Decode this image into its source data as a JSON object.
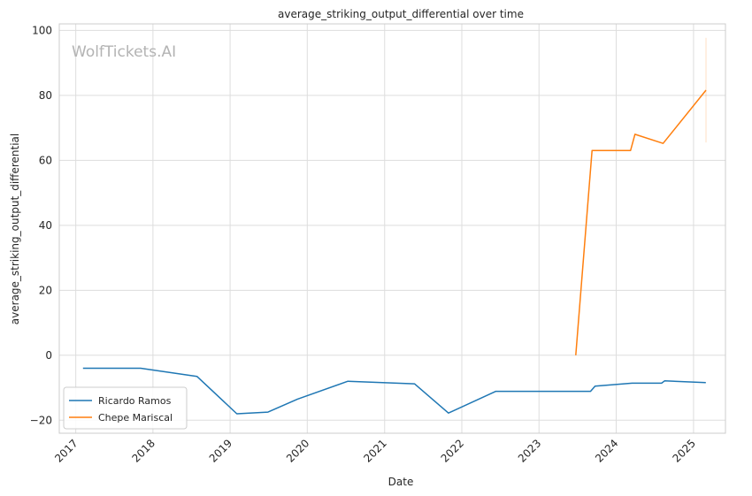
{
  "chart_data": {
    "type": "line",
    "title": "average_striking_output_differential over time",
    "xlabel": "Date",
    "ylabel": "average_striking_output_differential",
    "watermark": "WolfTickets.AI",
    "xlim": [
      "2016-10-15",
      "2025-06-01"
    ],
    "ylim": [
      -24,
      102
    ],
    "x_ticks": [
      "2017",
      "2018",
      "2019",
      "2020",
      "2021",
      "2022",
      "2023",
      "2024",
      "2025"
    ],
    "y_ticks": [
      -20,
      0,
      20,
      40,
      60,
      80,
      100
    ],
    "grid": true,
    "legend_position": "lower-left",
    "series": [
      {
        "name": "Ricardo Ramos",
        "color": "#1f77b4",
        "x": [
          "2017-02-04",
          "2017-11-04",
          "2018-07-28",
          "2019-02-02",
          "2019-06-29",
          "2019-11-16",
          "2020-07-11",
          "2021-05-22",
          "2021-10-30",
          "2022-06-11",
          "2023-09-02",
          "2023-09-23",
          "2024-03-16",
          "2024-08-03",
          "2024-08-17",
          "2025-02-28"
        ],
        "values": [
          -4,
          -4,
          -6.5,
          -18,
          -17.5,
          -13.5,
          -8,
          -8.8,
          -17.8,
          -11.1,
          -11.1,
          -9.5,
          -8.6,
          -8.6,
          -7.9,
          -8.4
        ]
      },
      {
        "name": "Chepe Mariscal",
        "color": "#ff7f0e",
        "x": [
          "2023-06-24",
          "2023-09-09",
          "2024-03-09",
          "2024-03-30",
          "2024-08-10",
          "2025-03-01"
        ],
        "values": [
          0,
          63,
          63,
          68,
          65.2,
          81.6
        ]
      }
    ],
    "error_band": {
      "series": "Chepe Mariscal",
      "x": "2025-03-01",
      "low": 65.5,
      "high": 97.7
    }
  }
}
